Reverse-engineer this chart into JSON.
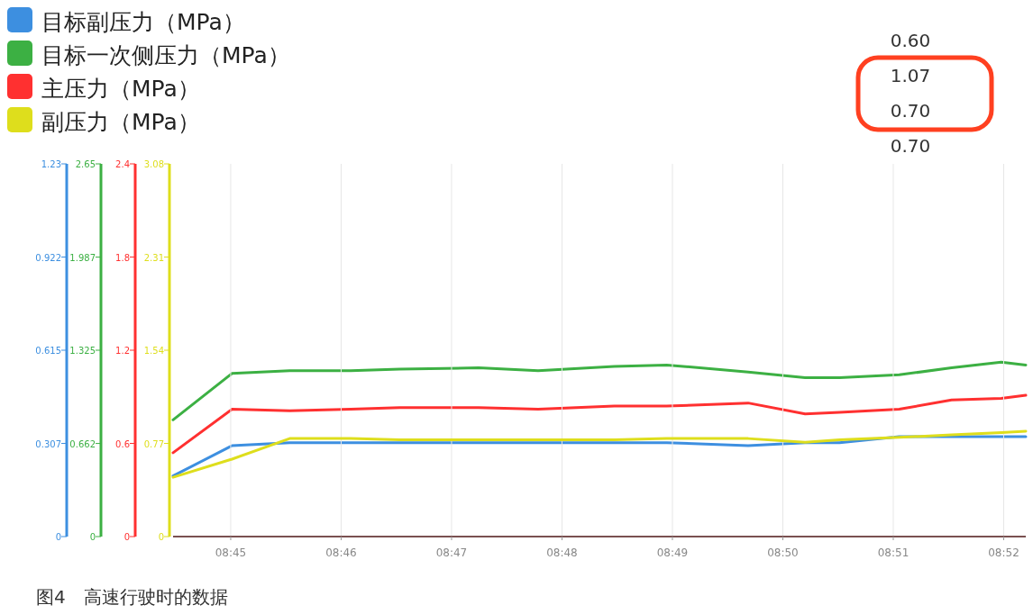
{
  "chart_data": [
    {
      "type": "line",
      "x": [
        8.7413,
        8.7502,
        8.7589,
        8.7681,
        8.7755,
        8.7874,
        8.7964,
        8.8079,
        8.8158,
        8.8281,
        8.8367,
        8.8419,
        8.8509,
        8.8588,
        8.8663,
        8.87
      ],
      "series": [
        {
          "name": "目标副压力（MPa）",
          "color": "#3d8fe0",
          "values": [
            0.2,
            0.3,
            0.31,
            0.31,
            0.31,
            0.31,
            0.31,
            0.31,
            0.31,
            0.3,
            0.31,
            0.31,
            0.33,
            0.33,
            0.33,
            0.33
          ]
        }
      ],
      "xlim": [
        8.7413,
        8.87
      ],
      "ylim": [
        0,
        1.23
      ],
      "yticks": [
        0,
        {
          "value": 0.3075,
          "label": "0.307"
        },
        0.615,
        {
          "value": 0.9225,
          "label": "0.922"
        },
        1.23
      ],
      "tick_labels": "y",
      "legend": "top left",
      "line_style": "solid",
      "marker": "none"
    },
    {
      "type": "line",
      "x": [
        8.7413,
        8.7502,
        8.7589,
        8.7681,
        8.7755,
        8.7874,
        8.7964,
        8.8079,
        8.8158,
        8.8281,
        8.8367,
        8.8419,
        8.8509,
        8.8588,
        8.8663,
        8.87
      ],
      "series": [
        {
          "name": "目标一次侧压力（MPa）",
          "color": "#3cb043",
          "values": [
            0.83,
            1.16,
            1.18,
            1.18,
            1.19,
            1.2,
            1.18,
            1.21,
            1.22,
            1.17,
            1.13,
            1.13,
            1.15,
            1.2,
            1.24,
            1.22
          ]
        }
      ],
      "xlim": [
        8.7413,
        8.87
      ],
      "ylim": [
        0,
        2.65
      ],
      "yticks": [
        0,
        0.662,
        1.325,
        1.987,
        2.65
      ],
      "tick_labels": "y",
      "legend": "top left",
      "line_style": "solid"
    },
    {
      "type": "line",
      "x": [
        8.7413,
        8.7502,
        8.7589,
        8.7681,
        8.7755,
        8.7874,
        8.7964,
        8.8079,
        8.8158,
        8.8281,
        8.8367,
        8.8419,
        8.8509,
        8.8588,
        8.8663,
        8.87
      ],
      "series": [
        {
          "name": "主压力（MPa）",
          "color": "#ff3030",
          "values": [
            0.54,
            0.82,
            0.81,
            0.82,
            0.83,
            0.83,
            0.82,
            0.84,
            0.84,
            0.86,
            0.79,
            0.8,
            0.82,
            0.88,
            0.89,
            0.91
          ]
        }
      ],
      "xlim": [
        8.7413,
        8.87
      ],
      "ylim": [
        0,
        2.4
      ],
      "yticks": [
        0,
        0.6,
        1.2,
        1.8,
        2.4
      ],
      "tick_labels": "y",
      "legend": "top left",
      "line_style": "solid"
    },
    {
      "type": "line",
      "x": [
        8.7413,
        8.7502,
        8.7589,
        8.7681,
        8.7755,
        8.7874,
        8.7964,
        8.8079,
        8.8158,
        8.8281,
        8.8367,
        8.8419,
        8.8509,
        8.8588,
        8.8663,
        8.87
      ],
      "series": [
        {
          "name": "副压力（MPa）",
          "color": "#dede1c",
          "values": [
            0.49,
            0.64,
            0.81,
            0.81,
            0.8,
            0.8,
            0.8,
            0.8,
            0.81,
            0.81,
            0.78,
            0.8,
            0.82,
            0.84,
            0.86,
            0.87
          ]
        }
      ],
      "xlim": [
        8.7413,
        8.87
      ],
      "xticks": [
        {
          "value": 8.75,
          "label": "08:45"
        },
        {
          "value": 8.766667,
          "label": "08:46"
        },
        {
          "value": 8.783333,
          "label": "08:47"
        },
        {
          "value": 8.8,
          "label": "08:48"
        },
        {
          "value": 8.816667,
          "label": "08:49"
        },
        {
          "value": 8.833333,
          "label": "08:50"
        },
        {
          "value": 8.85,
          "label": "08:51"
        },
        {
          "value": 8.866667,
          "label": "08:52"
        }
      ],
      "ylim": [
        0,
        3.08
      ],
      "yticks": [
        0,
        0.77,
        1.54,
        2.31,
        3.08
      ],
      "grid": "x",
      "legend": "top left",
      "line_style": "solid",
      "annotations": [
        "0.60",
        "1.07",
        "0.70",
        "0.70",
        "图4　高速行驶时的数据"
      ]
    }
  ]
}
